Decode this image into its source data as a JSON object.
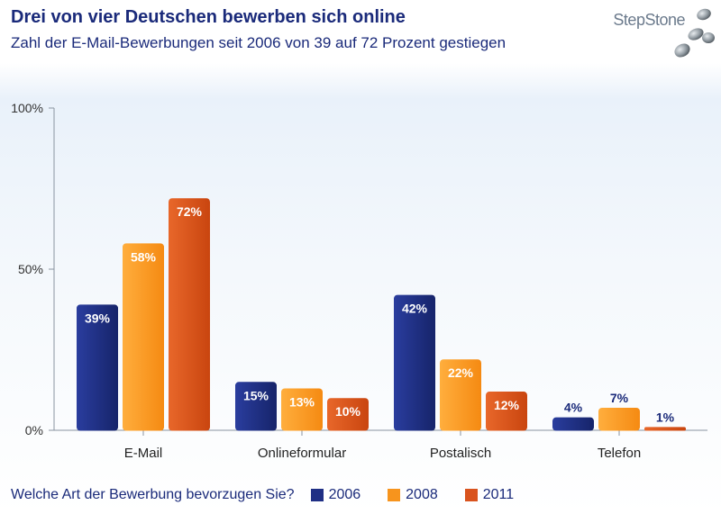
{
  "header": {
    "title": "Drei von vier Deutschen bewerben sich online",
    "subtitle": "Zahl der E-Mail-Bewerbungen seit 2006 von 39 auf 72 Prozent gestiegen"
  },
  "brand": {
    "logo_text": "StepStone"
  },
  "legend": {
    "question": "Welche Art der Bewerbung bevorzugen Sie?"
  },
  "colors": {
    "series_2006": "#1f2f85",
    "series_2008": "#f7941d",
    "series_2011": "#d9531e",
    "axis": "#8a94a0"
  },
  "chart_data": {
    "type": "bar",
    "title": "Drei von vier Deutschen bewerben sich online",
    "subtitle": "Zahl der E-Mail-Bewerbungen seit 2006 von 39 auf 72 Prozent gestiegen",
    "categories": [
      "E-Mail",
      "Onlineformular",
      "Postalisch",
      "Telefon"
    ],
    "series": [
      {
        "name": "2006",
        "values": [
          39,
          15,
          42,
          4
        ],
        "labels": [
          "39%",
          "15%",
          "42%",
          "4%"
        ]
      },
      {
        "name": "2008",
        "values": [
          58,
          13,
          22,
          7
        ],
        "labels": [
          "58%",
          "13%",
          "22%",
          "7%"
        ]
      },
      {
        "name": "2011",
        "values": [
          72,
          10,
          12,
          1
        ],
        "labels": [
          "72%",
          "10%",
          "12%",
          "1%"
        ]
      }
    ],
    "yticks": [
      0,
      50,
      100
    ],
    "ytick_labels": [
      "0%",
      "50%",
      "100%"
    ],
    "ylim": [
      0,
      100
    ],
    "legend_position": "bottom",
    "grid": false
  }
}
